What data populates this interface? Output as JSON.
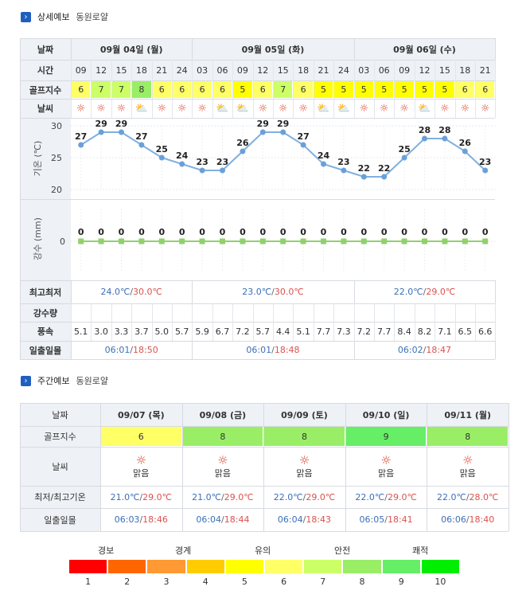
{
  "detail": {
    "title": "상세예보",
    "course": "동원로얄",
    "row_labels": {
      "date": "날짜",
      "time": "시간",
      "golf": "골프지수",
      "weather": "날씨",
      "temp_axis": "기온 (℃)",
      "rain_axis": "강수 (mm)",
      "minmax": "최고최저",
      "rain": "강수량",
      "wind": "풍속",
      "sun": "일출일몰"
    },
    "days": [
      {
        "label": "09월 04일 (월)",
        "min": "24.0℃",
        "max": "30.0℃",
        "sunrise": "06:01",
        "sunset": "18:50"
      },
      {
        "label": "09월 05일 (화)",
        "min": "23.0℃",
        "max": "30.0℃",
        "sunrise": "06:01",
        "sunset": "18:48"
      },
      {
        "label": "09월 06일 (수)",
        "min": "22.0℃",
        "max": "29.0℃",
        "sunrise": "06:02",
        "sunset": "18:47"
      }
    ],
    "times": [
      "09",
      "12",
      "15",
      "18",
      "21",
      "24",
      "03",
      "06",
      "09",
      "12",
      "15",
      "18",
      "21",
      "24",
      "03",
      "06",
      "09",
      "12",
      "15",
      "18",
      "21"
    ],
    "golf": [
      "6",
      "7",
      "7",
      "8",
      "6",
      "6",
      "6",
      "6",
      "5",
      "6",
      "7",
      "6",
      "5",
      "5",
      "5",
      "5",
      "5",
      "5",
      "5",
      "6",
      "6"
    ],
    "weather_icons": [
      "sun",
      "sun",
      "sun",
      "cloud",
      "sun",
      "sun",
      "sun",
      "cloud",
      "cloud",
      "sun",
      "sun",
      "sun",
      "cloud",
      "cloud",
      "sun",
      "sun",
      "sun",
      "cloud",
      "sun",
      "sun",
      "sun"
    ],
    "winds": [
      "5.1",
      "3.0",
      "3.3",
      "3.7",
      "5.0",
      "5.7",
      "5.9",
      "6.7",
      "7.2",
      "5.7",
      "4.4",
      "5.1",
      "7.7",
      "7.3",
      "7.2",
      "7.7",
      "8.4",
      "8.2",
      "7.1",
      "6.5",
      "6.6"
    ]
  },
  "chart_data": [
    {
      "type": "line",
      "ylabel": "기온 (℃)",
      "ylim": [
        20,
        30
      ],
      "yticks": [
        "30",
        "25",
        "20"
      ],
      "x": [
        "09",
        "12",
        "15",
        "18",
        "21",
        "24",
        "03",
        "06",
        "09",
        "12",
        "15",
        "18",
        "21",
        "24",
        "03",
        "06",
        "09",
        "12",
        "15",
        "18",
        "21"
      ],
      "series": [
        {
          "values": [
            27,
            29,
            29,
            27,
            25,
            24,
            23,
            23,
            26,
            29,
            29,
            27,
            24,
            23,
            22,
            22,
            25,
            28,
            28,
            26,
            23
          ]
        }
      ]
    },
    {
      "type": "line",
      "ylabel": "강수 (mm)",
      "yticks": [
        "0"
      ],
      "x": [
        "09",
        "12",
        "15",
        "18",
        "21",
        "24",
        "03",
        "06",
        "09",
        "12",
        "15",
        "18",
        "21",
        "24",
        "03",
        "06",
        "09",
        "12",
        "15",
        "18",
        "21"
      ],
      "series": [
        {
          "values": [
            0,
            0,
            0,
            0,
            0,
            0,
            0,
            0,
            0,
            0,
            0,
            0,
            0,
            0,
            0,
            0,
            0,
            0,
            0,
            0,
            0
          ]
        }
      ]
    }
  ],
  "weekly": {
    "title": "주간예보",
    "course": "동원로얄",
    "row_labels": {
      "date": "날짜",
      "golf": "골프지수",
      "weather": "날씨",
      "temp": "최저/최고기온",
      "sun": "일출일몰"
    },
    "days": [
      {
        "date": "09/07 (목)",
        "golf": "6",
        "weather": "맑음",
        "min": "21.0℃",
        "max": "29.0℃",
        "sunrise": "06:03",
        "sunset": "18:46"
      },
      {
        "date": "09/08 (금)",
        "golf": "8",
        "weather": "맑음",
        "min": "21.0℃",
        "max": "29.0℃",
        "sunrise": "06:04",
        "sunset": "18:44"
      },
      {
        "date": "09/09 (토)",
        "golf": "8",
        "weather": "맑음",
        "min": "22.0℃",
        "max": "29.0℃",
        "sunrise": "06:04",
        "sunset": "18:43"
      },
      {
        "date": "09/10 (일)",
        "golf": "9",
        "weather": "맑음",
        "min": "22.0℃",
        "max": "29.0℃",
        "sunrise": "06:05",
        "sunset": "18:41"
      },
      {
        "date": "09/11 (월)",
        "golf": "8",
        "weather": "맑음",
        "min": "22.0℃",
        "max": "28.0℃",
        "sunrise": "06:06",
        "sunset": "18:40"
      }
    ]
  },
  "legend": {
    "labels": [
      "경보",
      "경계",
      "유의",
      "안전",
      "쾌적"
    ],
    "numbers": [
      "1",
      "2",
      "3",
      "4",
      "5",
      "6",
      "7",
      "8",
      "9",
      "10"
    ],
    "colors": [
      "#ff0000",
      "#ff6600",
      "#ff9933",
      "#ffcc00",
      "#ffff00",
      "#ffff66",
      "#ccff66",
      "#99ee66",
      "#66ee66",
      "#00ee00"
    ]
  },
  "golf_colors": {
    "5": "#ffff00",
    "6": "#ffff66",
    "7": "#ccff66",
    "8": "#99ee66",
    "9": "#66ee66"
  }
}
